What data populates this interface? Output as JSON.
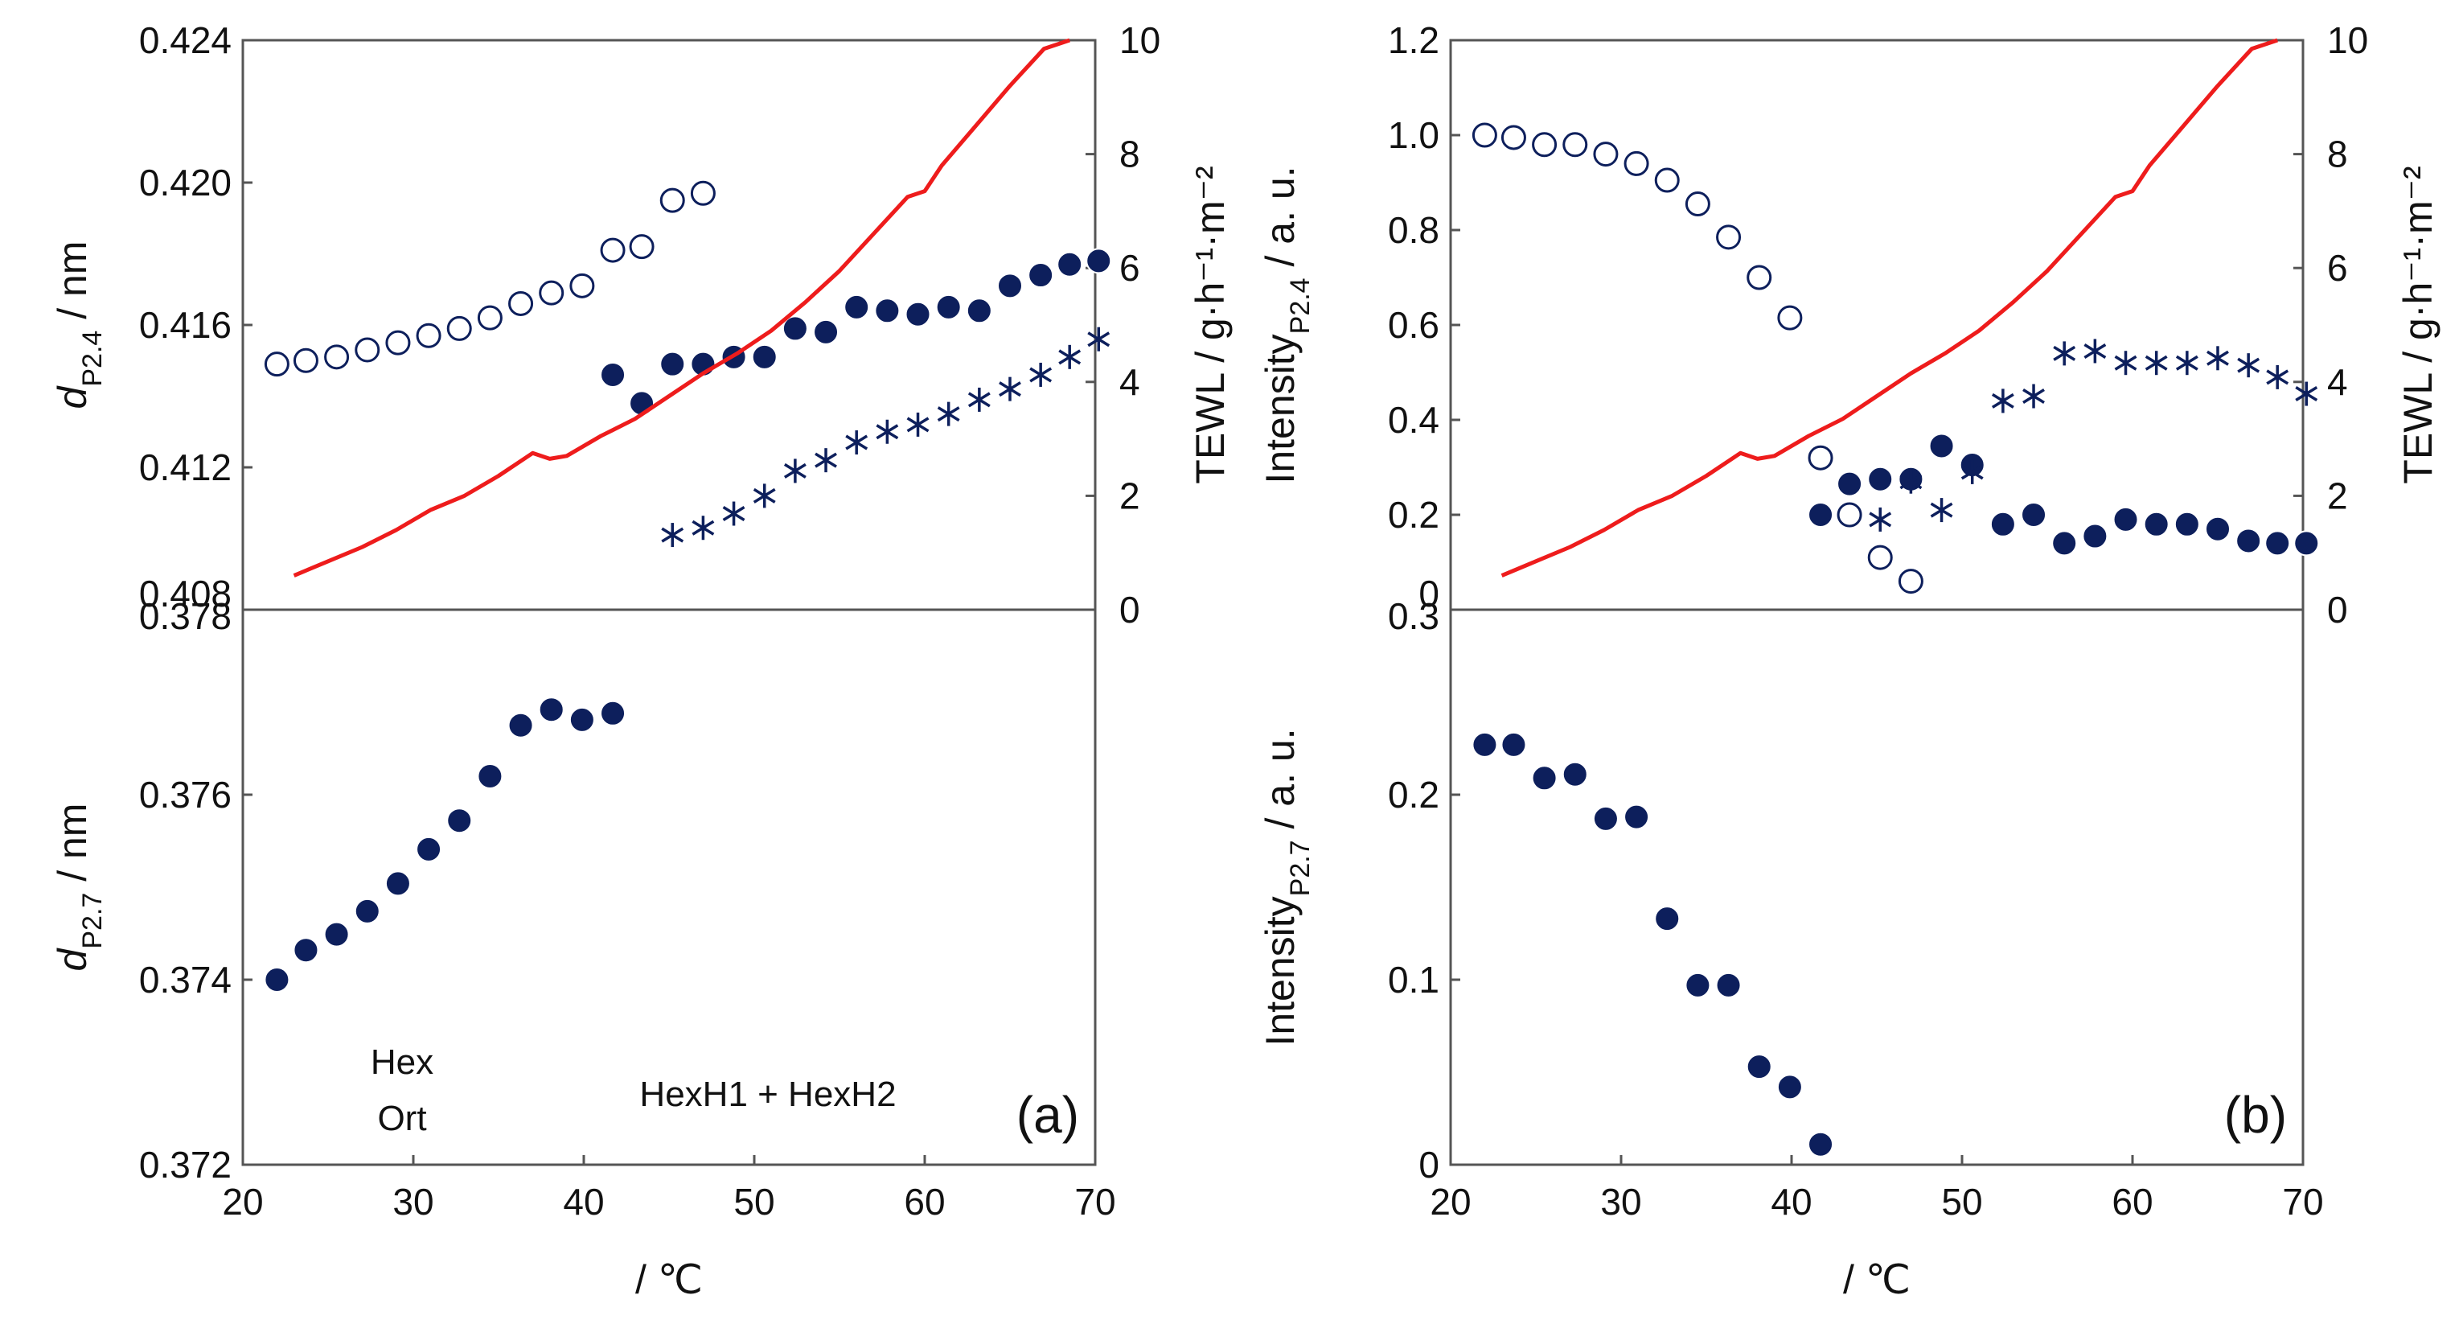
{
  "colors": {
    "marker": "#0d1f5c",
    "tewl": "#ee1c1c",
    "frame": "#555555",
    "text": "#111111"
  },
  "chart_data": [
    {
      "id": "a-top",
      "type": "scatter",
      "xlim": [
        20,
        70
      ],
      "ylabel": "d",
      "ylabel_sub": "P2.4",
      "ylabel_unit": " / nm",
      "ylim": [
        0.408,
        0.424
      ],
      "yticks": [
        "0.408",
        "0.412",
        "0.416",
        "0.420",
        "0.424"
      ],
      "y2label": "TEWL / g·h⁻¹·m⁻²",
      "y2lim": [
        0,
        10
      ],
      "y2ticks": [
        "0",
        "2",
        "4",
        "6",
        "8",
        "10"
      ],
      "series": [
        {
          "name": "open circles",
          "marker": "open-circle",
          "x": [
            22,
            23.7,
            25.5,
            27.3,
            29.1,
            30.9,
            32.7,
            34.5,
            36.3,
            38.1,
            39.9,
            41.7,
            43.4,
            45.2,
            47.0
          ],
          "y": [
            0.4149,
            0.415,
            0.4151,
            0.4153,
            0.4155,
            0.4157,
            0.4159,
            0.4162,
            0.4166,
            0.4169,
            0.4171,
            0.4181,
            0.4182,
            0.4195,
            0.4197
          ]
        },
        {
          "name": "filled circles",
          "marker": "filled-circle",
          "x": [
            41.7,
            43.4,
            45.2,
            47.0,
            48.8,
            50.6,
            52.4,
            54.2,
            56.0,
            57.8,
            59.6,
            61.4,
            63.2,
            65.0,
            66.8,
            68.5,
            70.2
          ],
          "y": [
            0.4146,
            0.4138,
            0.4149,
            0.4149,
            0.4151,
            0.4151,
            0.4159,
            0.4158,
            0.4165,
            0.4164,
            0.4163,
            0.4165,
            0.4164,
            0.4171,
            0.4174,
            0.4177,
            0.4178
          ]
        },
        {
          "name": "asterisks",
          "marker": "asterisk",
          "x": [
            45.2,
            47.0,
            48.8,
            50.6,
            52.4,
            54.2,
            56.0,
            57.8,
            59.6,
            61.4,
            63.2,
            65.0,
            66.8,
            68.5,
            70.2
          ],
          "y": [
            0.4101,
            0.4103,
            0.4107,
            0.4112,
            0.4119,
            0.4122,
            0.4127,
            0.413,
            0.4132,
            0.4135,
            0.4139,
            0.4142,
            0.4146,
            0.4151,
            0.4156
          ]
        },
        {
          "name": "TEWL",
          "type": "line",
          "axis": "y2",
          "x": [
            23,
            25,
            27,
            29,
            31,
            33,
            35,
            37,
            38,
            39,
            41,
            43,
            45,
            47,
            49,
            51,
            53,
            55,
            57,
            59,
            60,
            61,
            63,
            65,
            67,
            68.5
          ],
          "y": [
            0.6,
            0.85,
            1.1,
            1.4,
            1.75,
            2.0,
            2.35,
            2.75,
            2.65,
            2.7,
            3.05,
            3.35,
            3.75,
            4.15,
            4.5,
            4.9,
            5.4,
            5.95,
            6.6,
            7.25,
            7.35,
            7.8,
            8.5,
            9.2,
            9.85,
            10.0
          ]
        }
      ]
    },
    {
      "id": "a-bottom",
      "type": "scatter",
      "xlim": [
        20,
        70
      ],
      "xticks": [
        "20",
        "30",
        "40",
        "50",
        "60",
        "70"
      ],
      "xlabel": "/ ℃",
      "ylabel": "d",
      "ylabel_sub": "P2.7",
      "ylabel_unit": " / nm",
      "ylim": [
        0.372,
        0.378
      ],
      "yticks": [
        "0.372",
        "0.374",
        "0.376",
        "0.378"
      ],
      "annotations": [
        "Hex",
        "Ort",
        "HexH1 + HexH2"
      ],
      "panel_label": "(a)",
      "series": [
        {
          "name": "filled circles",
          "marker": "filled-circle",
          "x": [
            22,
            23.7,
            25.5,
            27.3,
            29.1,
            30.9,
            32.7,
            34.5,
            36.3,
            38.1,
            39.9,
            41.7
          ],
          "y": [
            0.374,
            0.37432,
            0.37449,
            0.37474,
            0.37504,
            0.37541,
            0.37572,
            0.3762,
            0.37675,
            0.37692,
            0.37681,
            0.37688
          ]
        }
      ]
    },
    {
      "id": "b-top",
      "type": "scatter",
      "xlim": [
        20,
        70
      ],
      "ylabel": "Intensity",
      "ylabel_sub": "P2.4",
      "ylabel_unit": " / a. u.",
      "ylim": [
        0,
        1.2
      ],
      "yticks": [
        "0",
        "0.2",
        "0.4",
        "0.6",
        "0.8",
        "1.0",
        "1.2"
      ],
      "y2label": "TEWL / g·h⁻¹·m⁻²",
      "y2lim": [
        0,
        10
      ],
      "y2ticks": [
        "0",
        "2",
        "4",
        "6",
        "8",
        "10"
      ],
      "series": [
        {
          "name": "open circles",
          "marker": "open-circle",
          "x": [
            22,
            23.7,
            25.5,
            27.3,
            29.1,
            30.9,
            32.7,
            34.5,
            36.3,
            38.1,
            39.9,
            41.7,
            43.4,
            45.2,
            47.0
          ],
          "y": [
            1.0,
            0.995,
            0.98,
            0.98,
            0.96,
            0.94,
            0.905,
            0.855,
            0.785,
            0.7,
            0.615,
            0.32,
            0.2,
            0.11,
            0.06
          ]
        },
        {
          "name": "filled circles",
          "marker": "filled-circle",
          "x": [
            41.7,
            43.4,
            45.2,
            47.0,
            48.8,
            50.6,
            52.4,
            54.2,
            56.0,
            57.8,
            59.6,
            61.4,
            63.2,
            65.0,
            66.8,
            68.5,
            70.2
          ],
          "y": [
            0.2,
            0.265,
            0.275,
            0.275,
            0.345,
            0.305,
            0.18,
            0.2,
            0.14,
            0.155,
            0.19,
            0.18,
            0.18,
            0.17,
            0.145,
            0.14,
            0.14
          ]
        },
        {
          "name": "asterisks",
          "marker": "asterisk",
          "x": [
            45.2,
            47.0,
            48.8,
            50.6,
            52.4,
            54.2,
            56.0,
            57.8,
            59.6,
            61.4,
            63.2,
            65.0,
            66.8,
            68.5,
            70.2
          ],
          "y": [
            0.19,
            0.27,
            0.21,
            0.29,
            0.44,
            0.45,
            0.54,
            0.545,
            0.52,
            0.52,
            0.52,
            0.53,
            0.515,
            0.49,
            0.455
          ]
        },
        {
          "name": "TEWL",
          "type": "line",
          "axis": "y2",
          "x": [
            23,
            25,
            27,
            29,
            31,
            33,
            35,
            37,
            38,
            39,
            41,
            43,
            45,
            47,
            49,
            51,
            53,
            55,
            57,
            59,
            60,
            61,
            63,
            65,
            67,
            68.5
          ],
          "y": [
            0.6,
            0.85,
            1.1,
            1.4,
            1.75,
            2.0,
            2.35,
            2.75,
            2.65,
            2.7,
            3.05,
            3.35,
            3.75,
            4.15,
            4.5,
            4.9,
            5.4,
            5.95,
            6.6,
            7.25,
            7.35,
            7.8,
            8.5,
            9.2,
            9.85,
            10.0
          ]
        }
      ]
    },
    {
      "id": "b-bottom",
      "type": "scatter",
      "xlim": [
        20,
        70
      ],
      "xticks": [
        "20",
        "30",
        "40",
        "50",
        "60",
        "70"
      ],
      "xlabel": "/ ℃",
      "ylabel": "Intensity",
      "ylabel_sub": "P2.7",
      "ylabel_unit": " / a. u.",
      "ylim": [
        0,
        0.3
      ],
      "yticks": [
        "0",
        "0.1",
        "0.2",
        "0.3"
      ],
      "panel_label": "(b)",
      "series": [
        {
          "name": "filled circles",
          "marker": "filled-circle",
          "x": [
            22,
            23.7,
            25.5,
            27.3,
            29.1,
            30.9,
            32.7,
            34.5,
            36.3,
            38.1,
            39.9,
            41.7
          ],
          "y": [
            0.227,
            0.227,
            0.209,
            0.211,
            0.187,
            0.188,
            0.133,
            0.097,
            0.097,
            0.053,
            0.042,
            0.011
          ]
        }
      ]
    }
  ]
}
